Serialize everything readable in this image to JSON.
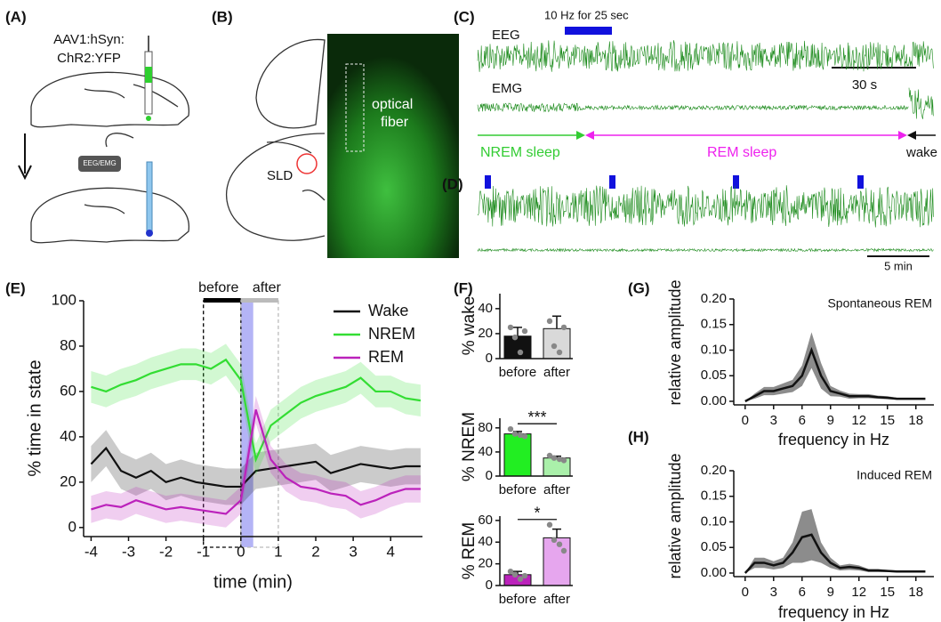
{
  "panels": {
    "A": {
      "label": "(A)",
      "virus": [
        "AAV1:hSyn:",
        "ChR2:YFP"
      ],
      "implant": "EEG/EMG"
    },
    "B": {
      "label": "(B)",
      "region": "SLD",
      "fiber": [
        "optical",
        "fiber"
      ]
    },
    "C": {
      "label": "(C)",
      "stim": "10 Hz for 25 sec",
      "eeg": "EEG",
      "emg": "EMG",
      "scale": "30 s",
      "states": [
        "NREM sleep",
        "REM sleep",
        "wake"
      ]
    },
    "D": {
      "label": "(D)",
      "scale": "5 min"
    }
  },
  "chart_data": [
    {
      "type": "line",
      "panel": "(E)",
      "ylabel": "% time in state",
      "xlabel": "time (min)",
      "x": [
        -4,
        -3.6,
        -3.2,
        -2.8,
        -2.4,
        -2,
        -1.6,
        -1.2,
        -0.8,
        -0.4,
        0,
        0.4,
        0.8,
        1.2,
        1.6,
        2,
        2.4,
        2.8,
        3.2,
        3.6,
        4,
        4.4,
        4.8
      ],
      "series": [
        {
          "name": "Wake",
          "color": "#111111",
          "error": 8,
          "values": [
            28,
            35,
            25,
            22,
            25,
            20,
            22,
            20,
            19,
            18,
            18,
            25,
            26,
            27,
            28,
            29,
            24,
            26,
            28,
            27,
            26,
            27,
            27
          ]
        },
        {
          "name": "NREM",
          "color": "#33dd33",
          "error": 7,
          "values": [
            62,
            60,
            63,
            65,
            68,
            70,
            72,
            72,
            70,
            74,
            65,
            30,
            45,
            50,
            55,
            58,
            60,
            62,
            66,
            60,
            60,
            57,
            56
          ]
        },
        {
          "name": "REM",
          "color": "#bb22bb",
          "error": 6,
          "values": [
            8,
            10,
            9,
            12,
            10,
            8,
            9,
            8,
            7,
            6,
            12,
            52,
            30,
            22,
            18,
            17,
            15,
            14,
            10,
            12,
            15,
            17,
            17
          ]
        }
      ],
      "windows": [
        {
          "label": "before",
          "range": [
            -1,
            0
          ],
          "color": "#000000"
        },
        {
          "label": "after",
          "range": [
            0,
            1
          ],
          "color": "#bbbbbb"
        }
      ],
      "stim": [
        0,
        0.33
      ],
      "stim_color": "#7777ee",
      "xlim": [
        -4.2,
        4.85
      ],
      "ylim": [
        -4,
        100
      ],
      "xticks": [
        -4,
        -3,
        -2,
        -1,
        0,
        1,
        2,
        3,
        4
      ],
      "yticks": [
        0,
        20,
        40,
        60,
        80,
        100
      ]
    },
    {
      "type": "bar",
      "panel": "(F)",
      "ylabel": "% wake",
      "categories": [
        "before",
        "after"
      ],
      "values": [
        18,
        24
      ],
      "errors": [
        7,
        10
      ],
      "colors": [
        "#111111",
        "#d9d9d9"
      ],
      "points": [
        [
          25,
          17,
          5,
          22
        ],
        [
          30,
          10,
          5,
          25
        ]
      ],
      "ylim": [
        0,
        52
      ],
      "yticks": [
        0,
        20,
        40
      ]
    },
    {
      "type": "bar",
      "ylabel": "% NREM",
      "categories": [
        "before",
        "after"
      ],
      "values": [
        70,
        30
      ],
      "errors": [
        4,
        3
      ],
      "colors": [
        "#22ee22",
        "#aaf0aa"
      ],
      "points": [
        [
          78,
          70,
          68,
          66
        ],
        [
          34,
          30,
          28,
          26
        ]
      ],
      "ylim": [
        0,
        96
      ],
      "yticks": [
        0,
        40,
        80
      ],
      "significance": "***"
    },
    {
      "type": "bar",
      "ylabel": "% REM",
      "categories": [
        "before",
        "after"
      ],
      "values": [
        10,
        44
      ],
      "errors": [
        3,
        8
      ],
      "colors": [
        "#bb22bb",
        "#e6a6ee"
      ],
      "points": [
        [
          13,
          10,
          6,
          9
        ],
        [
          56,
          42,
          38,
          32
        ]
      ],
      "ylim": [
        0,
        64
      ],
      "yticks": [
        0,
        20,
        40,
        60
      ],
      "significance": "*"
    },
    {
      "type": "line",
      "panel": "(G)",
      "annotation": "Spontaneous REM",
      "ylabel": "relative amplitude",
      "xlabel": "frequency in Hz",
      "color": "#111111",
      "x": [
        0,
        1,
        2,
        3,
        4,
        5,
        6,
        7,
        8,
        9,
        10,
        11,
        12,
        13,
        14,
        15,
        16,
        17,
        18,
        19
      ],
      "values": [
        0,
        0.01,
        0.02,
        0.02,
        0.025,
        0.03,
        0.05,
        0.1,
        0.05,
        0.02,
        0.015,
        0.01,
        0.01,
        0.01,
        0.008,
        0.007,
        0.005,
        0.005,
        0.005,
        0.005
      ],
      "error": [
        0,
        0.005,
        0.008,
        0.008,
        0.01,
        0.012,
        0.02,
        0.035,
        0.025,
        0.01,
        0.006,
        0.005,
        0.004,
        0.004,
        0.003,
        0.003,
        0.002,
        0.002,
        0.002,
        0.002
      ],
      "xlim": [
        -1.2,
        19.9
      ],
      "ylim": [
        -0.007,
        0.2
      ],
      "xticks": [
        0,
        3,
        6,
        9,
        12,
        15,
        18
      ],
      "yticks": [
        {
          "value": 0,
          "label": "0.00"
        },
        {
          "value": 0.05,
          "label": "0.05"
        },
        {
          "value": 0.1,
          "label": "0.10"
        },
        {
          "value": 0.15,
          "label": "0.15"
        },
        {
          "value": 0.2,
          "label": "0.20"
        }
      ]
    },
    {
      "type": "line",
      "panel": "(H)",
      "annotation": "Induced REM",
      "ylabel": "relative amplitude",
      "xlabel": "frequency in Hz",
      "color": "#111111",
      "x": [
        0,
        1,
        2,
        3,
        4,
        5,
        6,
        7,
        8,
        9,
        10,
        11,
        12,
        13,
        14,
        15,
        16,
        17,
        18,
        19
      ],
      "values": [
        0,
        0.02,
        0.02,
        0.015,
        0.02,
        0.04,
        0.07,
        0.075,
        0.04,
        0.02,
        0.01,
        0.012,
        0.01,
        0.005,
        0.005,
        0.004,
        0.003,
        0.003,
        0.003,
        0.003
      ],
      "error": [
        0,
        0.01,
        0.01,
        0.008,
        0.01,
        0.02,
        0.05,
        0.05,
        0.02,
        0.01,
        0.005,
        0.006,
        0.005,
        0.003,
        0.003,
        0.002,
        0.002,
        0.002,
        0.002,
        0.002
      ],
      "xlim": [
        -1.2,
        19.9
      ],
      "ylim": [
        -0.007,
        0.2
      ],
      "xticks": [
        0,
        3,
        6,
        9,
        12,
        15,
        18
      ],
      "yticks": [
        {
          "value": 0,
          "label": "0.00"
        },
        {
          "value": 0.05,
          "label": "0.05"
        },
        {
          "value": 0.1,
          "label": "0.10"
        },
        {
          "value": 0.15,
          "label": "0.15"
        },
        {
          "value": 0.2,
          "label": "0.20"
        }
      ]
    }
  ]
}
